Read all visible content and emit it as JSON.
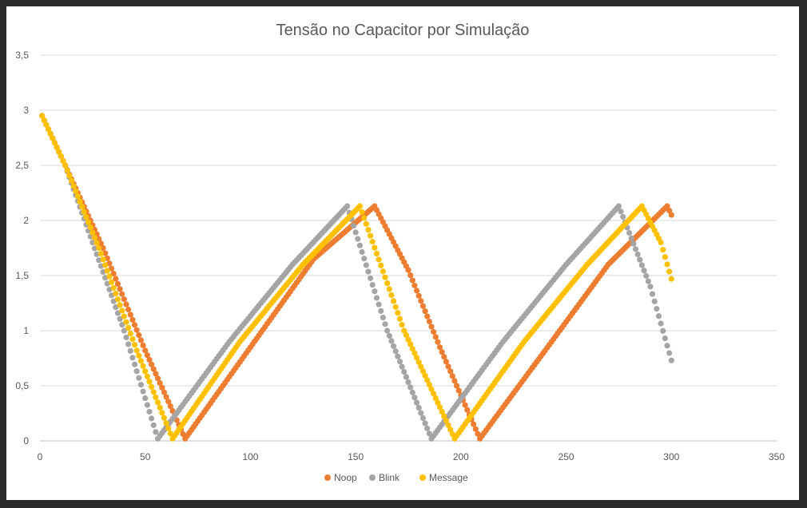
{
  "chart_data": {
    "type": "scatter",
    "title": "Tensão no Capacitor por Simulação",
    "xlabel": "",
    "ylabel": "",
    "xlim": [
      0,
      350
    ],
    "ylim": [
      0,
      3.5
    ],
    "x_ticks": [
      "0",
      "50",
      "100",
      "150",
      "200",
      "250",
      "300",
      "350"
    ],
    "y_ticks": [
      "0",
      "0,5",
      "1",
      "1,5",
      "2",
      "2,5",
      "3",
      "3,5"
    ],
    "grid": "horizontal",
    "legend": "bottom",
    "series": [
      {
        "name": "Noop",
        "color": "#ED7D31",
        "points": [
          [
            1,
            2.95
          ],
          [
            12,
            2.5
          ],
          [
            30,
            1.75
          ],
          [
            50,
            0.82
          ],
          [
            69,
            0.02
          ],
          [
            100,
            0.85
          ],
          [
            130,
            1.65
          ],
          [
            159,
            2.13
          ],
          [
            175,
            1.55
          ],
          [
            190,
            0.85
          ],
          [
            209,
            0.02
          ],
          [
            240,
            0.82
          ],
          [
            270,
            1.6
          ],
          [
            298,
            2.13
          ],
          [
            300,
            2.05
          ]
        ]
      },
      {
        "name": "Blink",
        "color": "#A5A5A5",
        "points": [
          [
            1,
            2.95
          ],
          [
            12,
            2.5
          ],
          [
            25,
            1.8
          ],
          [
            40,
            1.0
          ],
          [
            56,
            0.02
          ],
          [
            90,
            0.9
          ],
          [
            120,
            1.6
          ],
          [
            146,
            2.13
          ],
          [
            165,
            1.0
          ],
          [
            186,
            0.02
          ],
          [
            220,
            0.9
          ],
          [
            250,
            1.6
          ],
          [
            275,
            2.13
          ],
          [
            290,
            1.4
          ],
          [
            300,
            0.73
          ]
        ]
      },
      {
        "name": "Message",
        "color": "#FFC000",
        "points": [
          [
            1,
            2.95
          ],
          [
            12,
            2.5
          ],
          [
            28,
            1.75
          ],
          [
            46,
            0.82
          ],
          [
            63,
            0.02
          ],
          [
            95,
            0.9
          ],
          [
            125,
            1.6
          ],
          [
            152,
            2.13
          ],
          [
            173,
            1.0
          ],
          [
            197,
            0.02
          ],
          [
            230,
            0.9
          ],
          [
            260,
            1.6
          ],
          [
            286,
            2.13
          ],
          [
            295,
            1.8
          ],
          [
            300,
            1.47
          ]
        ]
      }
    ]
  }
}
